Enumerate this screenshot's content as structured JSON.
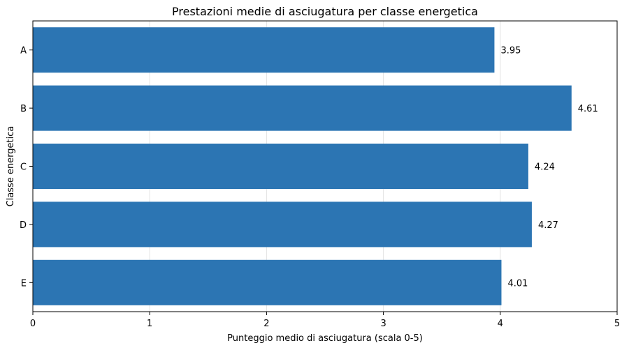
{
  "chart_data": {
    "type": "bar",
    "orientation": "horizontal",
    "title": "Prestazioni medie di asciugatura per classe energetica",
    "xlabel": "Punteggio medio di asciugatura (scala 0-5)",
    "ylabel": "Classe energetica",
    "categories": [
      "A",
      "B",
      "C",
      "D",
      "E"
    ],
    "values": [
      3.95,
      4.61,
      4.24,
      4.27,
      4.01
    ],
    "value_labels": [
      "3.95",
      "4.61",
      "4.24",
      "4.27",
      "4.01"
    ],
    "xlim": [
      0,
      5
    ],
    "xticks": [
      0,
      1,
      2,
      3,
      4,
      5
    ],
    "xtick_labels": [
      "0",
      "1",
      "2",
      "3",
      "4",
      "5"
    ],
    "grid": "vertical",
    "bar_color": "#2c75b3"
  }
}
